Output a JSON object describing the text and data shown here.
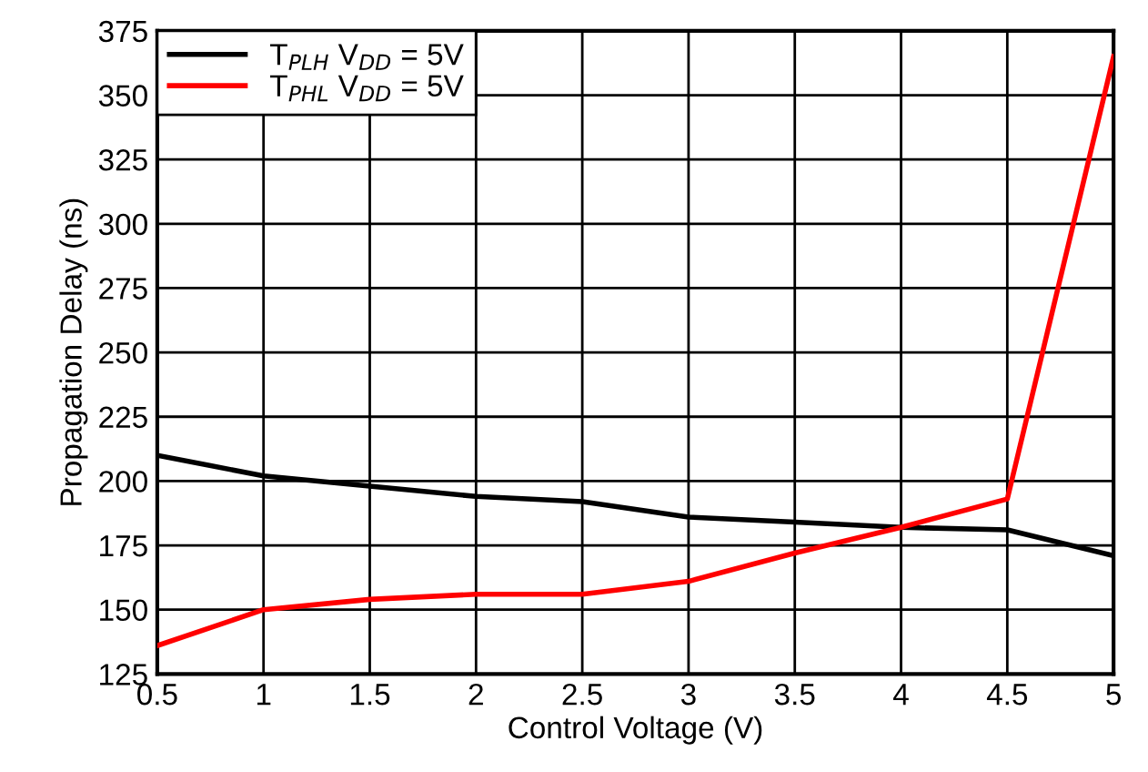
{
  "chart_data": {
    "type": "line",
    "xlabel": "Control Voltage (V)",
    "ylabel": "Propagation Delay (ns)",
    "x": [
      0.5,
      1,
      1.5,
      2,
      2.5,
      3,
      3.5,
      4,
      4.5,
      5
    ],
    "series": [
      {
        "name": "T$_{PLH}$ V$_{DD}$ = 5V",
        "color": "#000000",
        "values": [
          210,
          202,
          198,
          194,
          192,
          186,
          184,
          182,
          181,
          171
        ]
      },
      {
        "name": "T$_{PHL}$ V$_{DD}$ = 5V",
        "color": "#ff0000",
        "values": [
          136,
          150,
          154,
          156,
          156,
          161,
          172,
          182,
          193,
          365
        ]
      }
    ],
    "xlim": [
      0.5,
      5
    ],
    "xticks": [
      0.5,
      1,
      1.5,
      2,
      2.5,
      3,
      3.5,
      4,
      4.5,
      5
    ],
    "ylim": [
      125,
      375
    ],
    "yticks": [
      125,
      150,
      175,
      200,
      225,
      250,
      275,
      300,
      325,
      350,
      375
    ],
    "grid": true,
    "legend": "top left",
    "marker": "none",
    "line_style": "solid"
  }
}
